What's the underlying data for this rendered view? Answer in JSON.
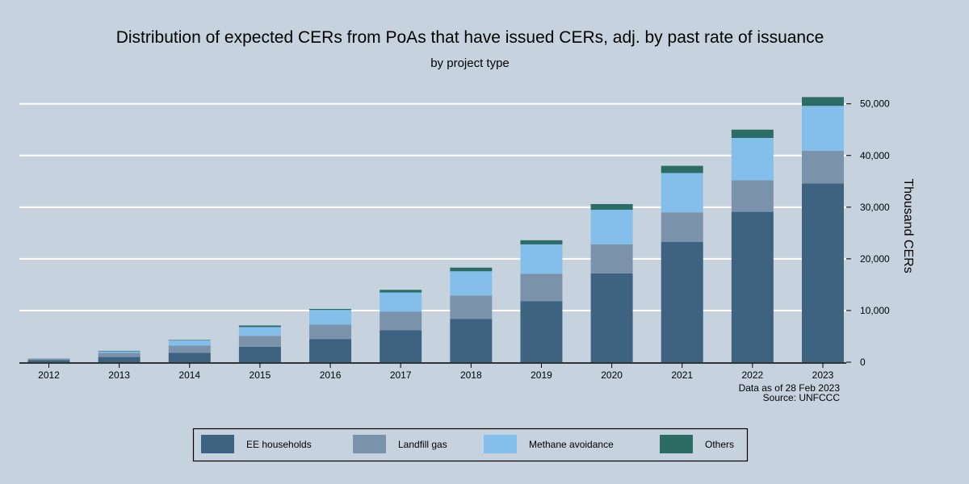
{
  "chart_data": {
    "type": "bar",
    "stacked": true,
    "title": "Distribution of expected CERs from PoAs that have issued CERs, adj. by past rate of issuance",
    "subtitle": "by project type",
    "ylabel": "Thousand CERs",
    "xlabel": "",
    "y_axis_side": "right",
    "ylim": [
      0,
      50000
    ],
    "yticks": [
      0,
      10000,
      20000,
      30000,
      40000,
      50000
    ],
    "ytick_labels": [
      "0",
      "10,000",
      "20,000",
      "30,000",
      "40,000",
      "50,000"
    ],
    "grid": true,
    "categories": [
      "2012",
      "2013",
      "2014",
      "2015",
      "2016",
      "2017",
      "2018",
      "2019",
      "2020",
      "2021",
      "2022",
      "2023"
    ],
    "series": [
      {
        "name": "EE households",
        "color": "#3d6380",
        "values": [
          400,
          1000,
          1800,
          3000,
          4500,
          6200,
          8400,
          11800,
          17200,
          23300,
          29100,
          34600
        ]
      },
      {
        "name": "Landfill gas",
        "color": "#7b93aa",
        "values": [
          300,
          800,
          1400,
          2100,
          2800,
          3600,
          4500,
          5300,
          5600,
          5700,
          6100,
          6300
        ]
      },
      {
        "name": "Methane avoidance",
        "color": "#83bfea",
        "values": [
          0,
          300,
          1000,
          1700,
          2800,
          3700,
          4700,
          5700,
          6700,
          7600,
          8200,
          8700
        ]
      },
      {
        "name": "Others",
        "color": "#2b6c65",
        "values": [
          0,
          100,
          100,
          300,
          200,
          500,
          700,
          800,
          1100,
          1400,
          1600,
          1700
        ]
      }
    ],
    "legend_position": "bottom",
    "notes": [
      "Data as of 28 Feb 2023",
      "Source: UNFCCC"
    ]
  }
}
